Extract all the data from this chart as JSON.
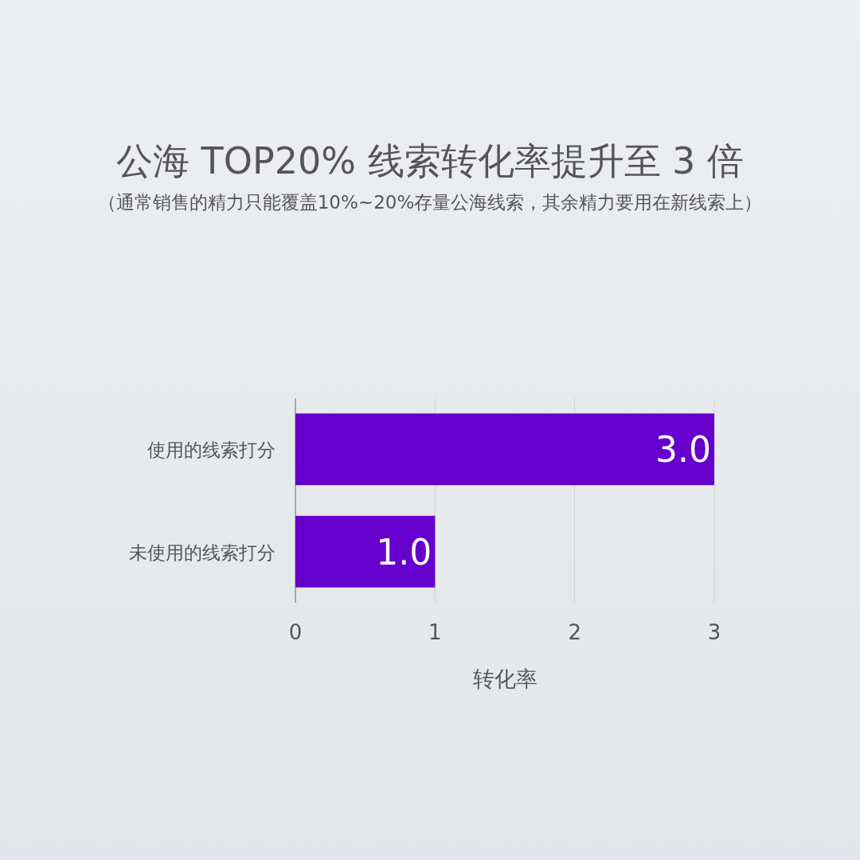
{
  "chart_data": {
    "type": "bar",
    "orientation": "horizontal",
    "title": "公海 TOP20% 线索转化率提升至 3 倍",
    "subtitle": "（通常销售的精力只能覆盖10%~20%存量公海线索，其余精力要用在新线索上）",
    "xlabel": "转化率",
    "categories": [
      "使用的线索打分",
      "未使用的线索打分"
    ],
    "values": [
      3.0,
      1.0
    ],
    "value_labels": [
      "3.0",
      "1.0"
    ],
    "color": "#6600cc",
    "xlim": [
      0,
      3
    ],
    "xticks": [
      0,
      1,
      2,
      3
    ],
    "grid": "x"
  }
}
